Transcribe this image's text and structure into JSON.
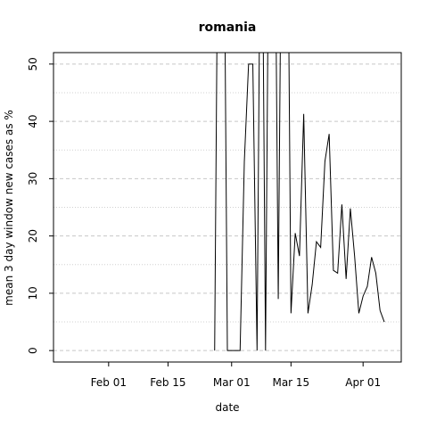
{
  "chart_data": {
    "type": "line",
    "title": "romania",
    "xlabel": "date",
    "ylabel": "mean  3  day window new cases as %",
    "x_tick_labels": [
      "Feb 01",
      "Feb 15",
      "Mar 01",
      "Mar 15",
      "Apr 01"
    ],
    "x_tick_dates": [
      "2020-02-01",
      "2020-02-15",
      "2020-03-01",
      "2020-03-15",
      "2020-04-01"
    ],
    "y_ticks": [
      0,
      10,
      20,
      30,
      40,
      50
    ],
    "xlim": [
      "2020-01-19",
      "2020-04-10"
    ],
    "ylim": [
      -2,
      52
    ],
    "grid": {
      "major_y": "dashed",
      "minor_y": "dotted"
    },
    "series": [
      {
        "x": [
          "2020-02-26",
          "2020-02-27",
          "2020-02-28",
          "2020-02-29",
          "2020-03-01",
          "2020-03-02",
          "2020-03-03",
          "2020-03-04",
          "2020-03-05",
          "2020-03-06",
          "2020-03-07",
          "2020-03-08",
          "2020-03-09",
          "2020-03-10",
          "2020-03-11",
          "2020-03-12",
          "2020-03-13",
          "2020-03-14",
          "2020-03-15",
          "2020-03-16",
          "2020-03-17",
          "2020-03-18",
          "2020-03-19",
          "2020-03-20",
          "2020-03-21",
          "2020-03-22",
          "2020-03-23",
          "2020-03-24",
          "2020-03-25",
          "2020-03-26",
          "2020-03-27",
          "2020-03-28",
          "2020-03-29",
          "2020-03-30",
          "2020-03-31",
          "2020-04-01",
          "2020-04-02",
          "2020-04-03",
          "2020-04-04",
          "2020-04-05"
        ],
        "values": [
          0,
          100,
          100,
          0,
          0,
          0,
          0,
          33,
          50,
          50,
          0,
          100,
          0,
          100,
          100,
          9,
          100,
          100,
          6.5,
          20.5,
          16.5,
          41.3,
          6.5,
          11.5,
          19,
          18,
          33,
          37.8,
          14,
          13.5,
          25.5,
          12.5,
          24.8,
          16.5,
          6.5,
          9.5,
          11.2,
          16.3,
          13.5,
          7
        ]
      },
      {
        "x": [
          "2020-04-05",
          "2020-04-06"
        ],
        "values": [
          7,
          5
        ]
      }
    ]
  }
}
